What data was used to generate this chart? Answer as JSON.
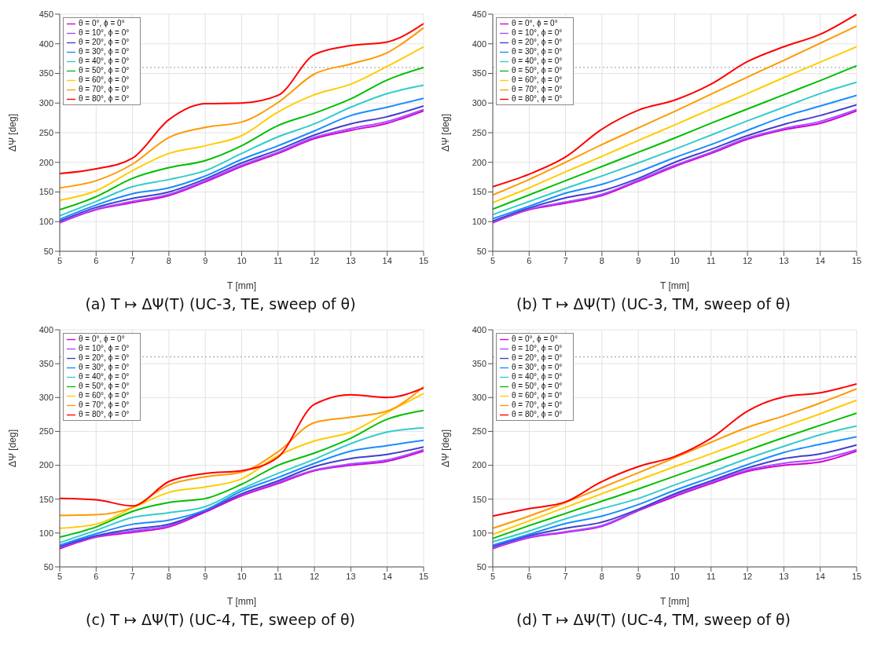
{
  "chart_data": [
    {
      "type": "line",
      "title": "(a)  T ↦ ΔΨ(T) (UC-3, TE, sweep of θ)",
      "xlabel": "T [mm]",
      "ylabel": "ΔΨ [deg]",
      "x": [
        5,
        6,
        7,
        8,
        9,
        10,
        11,
        12,
        13,
        14,
        15
      ],
      "xlim": [
        5,
        15
      ],
      "xticks": [
        5,
        6,
        7,
        8,
        9,
        10,
        11,
        12,
        13,
        14,
        15
      ],
      "ylim": [
        50,
        450
      ],
      "yticks": [
        50,
        100,
        150,
        200,
        250,
        300,
        350,
        400,
        450
      ],
      "grid": true,
      "legend": "top left",
      "ref_lines": [
        {
          "axis": "y",
          "value": 360,
          "color": "#999999",
          "line_style": "dotted"
        }
      ],
      "series": [
        {
          "name": "θ = 0°, ϕ = 0°",
          "color": "#d400d4",
          "values": [
            98,
            120,
            132,
            144,
            167,
            193,
            215,
            240,
            254,
            266,
            287
          ]
        },
        {
          "name": "θ = 10°, ϕ = 0°",
          "color": "#a64dff",
          "values": [
            99,
            121,
            134,
            146,
            169,
            195,
            217,
            242,
            257,
            269,
            289
          ]
        },
        {
          "name": "θ = 20°, ϕ = 0°",
          "color": "#4040cc",
          "values": [
            101,
            124,
            139,
            150,
            172,
            199,
            221,
            246,
            265,
            277,
            295
          ]
        },
        {
          "name": "θ = 30°, ϕ = 0°",
          "color": "#1a8cff",
          "values": [
            104,
            128,
            147,
            157,
            177,
            205,
            228,
            253,
            279,
            293,
            308
          ]
        },
        {
          "name": "θ = 40°, ϕ = 0°",
          "color": "#33cccc",
          "values": [
            110,
            134,
            159,
            171,
            186,
            215,
            243,
            265,
            293,
            316,
            330
          ]
        },
        {
          "name": "θ = 50°, ϕ = 0°",
          "color": "#00bf00",
          "values": [
            120,
            142,
            173,
            191,
            203,
            228,
            262,
            283,
            307,
            339,
            360
          ]
        },
        {
          "name": "θ = 60°, ϕ = 0°",
          "color": "#ffcc00",
          "values": [
            136,
            152,
            186,
            215,
            228,
            245,
            285,
            314,
            332,
            362,
            395
          ]
        },
        {
          "name": "θ = 70°, ϕ = 0°",
          "color": "#ff9900",
          "values": [
            157,
            169,
            197,
            242,
            259,
            268,
            301,
            349,
            366,
            385,
            427
          ]
        },
        {
          "name": "θ = 80°, ϕ = 0°",
          "color": "#ff0000",
          "values": [
            181,
            189,
            207,
            272,
            299,
            300,
            313,
            382,
            397,
            403,
            434
          ]
        }
      ]
    },
    {
      "type": "line",
      "title": "(b)  T ↦ ΔΨ(T) (UC-3, TM, sweep of θ)",
      "xlabel": "T [mm]",
      "ylabel": "ΔΨ [deg]",
      "x": [
        5,
        6,
        7,
        8,
        9,
        10,
        11,
        12,
        13,
        14,
        15
      ],
      "xlim": [
        5,
        15
      ],
      "xticks": [
        5,
        6,
        7,
        8,
        9,
        10,
        11,
        12,
        13,
        14,
        15
      ],
      "ylim": [
        50,
        450
      ],
      "yticks": [
        50,
        100,
        150,
        200,
        250,
        300,
        350,
        400,
        450
      ],
      "grid": true,
      "legend": "top left",
      "ref_lines": [
        {
          "axis": "y",
          "value": 360,
          "color": "#999999",
          "line_style": "dotted"
        }
      ],
      "series": [
        {
          "name": "θ = 0°, ϕ = 0°",
          "color": "#d400d4",
          "values": [
            98,
            120,
            131,
            144,
            168,
            193,
            215,
            239,
            255,
            266,
            287
          ]
        },
        {
          "name": "θ = 10°, ϕ = 0°",
          "color": "#a64dff",
          "values": [
            99,
            121,
            133,
            146,
            170,
            195,
            217,
            241,
            257,
            269,
            289
          ]
        },
        {
          "name": "θ = 20°, ϕ = 0°",
          "color": "#4040cc",
          "values": [
            101,
            123,
            140,
            152,
            173,
            200,
            222,
            245,
            264,
            279,
            297
          ]
        },
        {
          "name": "θ = 30°, ϕ = 0°",
          "color": "#1a8cff",
          "values": [
            105,
            126,
            148,
            163,
            184,
            208,
            230,
            254,
            277,
            295,
            313
          ]
        },
        {
          "name": "θ = 40°, ϕ = 0°",
          "color": "#33cccc",
          "values": [
            112,
            134,
            156,
            177,
            199,
            222,
            246,
            270,
            293,
            316,
            335
          ]
        },
        {
          "name": "θ = 50°, ϕ = 0°",
          "color": "#00bf00",
          "values": [
            121,
            145,
            169,
            193,
            217,
            241,
            266,
            290,
            314,
            338,
            363
          ]
        },
        {
          "name": "θ = 60°, ϕ = 0°",
          "color": "#ffcc00",
          "values": [
            132,
            157,
            184,
            210,
            237,
            263,
            290,
            316,
            343,
            369,
            395
          ]
        },
        {
          "name": "θ = 70°, ϕ = 0°",
          "color": "#ff9900",
          "values": [
            145,
            171,
            200,
            230,
            258,
            286,
            315,
            344,
            372,
            401,
            430
          ]
        },
        {
          "name": "θ = 80°, ϕ = 0°",
          "color": "#ff0000",
          "values": [
            159,
            180,
            209,
            256,
            288,
            305,
            332,
            370,
            395,
            416,
            450
          ]
        }
      ]
    },
    {
      "type": "line",
      "title": "(c)  T ↦ ΔΨ(T) (UC-4, TE, sweep of θ)",
      "xlabel": "T [mm]",
      "ylabel": "ΔΨ [deg]",
      "x": [
        5,
        6,
        7,
        8,
        9,
        10,
        11,
        12,
        13,
        14,
        15
      ],
      "xlim": [
        5,
        15
      ],
      "xticks": [
        5,
        6,
        7,
        8,
        9,
        10,
        11,
        12,
        13,
        14,
        15
      ],
      "ylim": [
        50,
        400
      ],
      "yticks": [
        50,
        100,
        150,
        200,
        250,
        300,
        350,
        400
      ],
      "grid": true,
      "legend": "top left",
      "ref_lines": [
        {
          "axis": "y",
          "value": 360,
          "color": "#999999",
          "line_style": "dotted"
        }
      ],
      "series": [
        {
          "name": "θ = 0°, ϕ = 0°",
          "color": "#d400d4",
          "values": [
            77,
            94,
            101,
            109,
            131,
            155,
            173,
            192,
            200,
            206,
            221
          ]
        },
        {
          "name": "θ = 10°, ϕ = 0°",
          "color": "#a64dff",
          "values": [
            79,
            95,
            103,
            111,
            133,
            157,
            175,
            193,
            202,
            208,
            223
          ]
        },
        {
          "name": "θ = 20°, ϕ = 0°",
          "color": "#4040cc",
          "values": [
            80,
            96,
            106,
            113,
            133,
            158,
            177,
            198,
            210,
            216,
            227
          ]
        },
        {
          "name": "θ = 30°, ϕ = 0°",
          "color": "#1a8cff",
          "values": [
            82,
            99,
            113,
            119,
            134,
            162,
            182,
            203,
            221,
            229,
            237
          ]
        },
        {
          "name": "θ = 40°, ϕ = 0°",
          "color": "#33cccc",
          "values": [
            86,
            104,
            123,
            130,
            139,
            165,
            188,
            209,
            232,
            249,
            255
          ]
        },
        {
          "name": "θ = 50°, ϕ = 0°",
          "color": "#00bf00",
          "values": [
            94,
            109,
            132,
            145,
            151,
            172,
            200,
            218,
            240,
            268,
            281
          ]
        },
        {
          "name": "θ = 60°, ϕ = 0°",
          "color": "#ffcc00",
          "values": [
            107,
            113,
            137,
            160,
            168,
            180,
            214,
            236,
            249,
            278,
            306
          ]
        },
        {
          "name": "θ = 70°, ϕ = 0°",
          "color": "#ff9900",
          "values": [
            126,
            127,
            138,
            171,
            183,
            190,
            220,
            263,
            271,
            280,
            316
          ]
        },
        {
          "name": "θ = 80°, ϕ = 0°",
          "color": "#ff0000",
          "values": [
            151,
            149,
            140,
            176,
            188,
            192,
            212,
            290,
            304,
            300,
            314
          ]
        }
      ]
    },
    {
      "type": "line",
      "title": "(d)  T ↦ ΔΨ(T) (UC-4, TM, sweep of θ)",
      "xlabel": "T [mm]",
      "ylabel": "ΔΨ [deg]",
      "x": [
        5,
        6,
        7,
        8,
        9,
        10,
        11,
        12,
        13,
        14,
        15
      ],
      "xlim": [
        5,
        15
      ],
      "xticks": [
        5,
        6,
        7,
        8,
        9,
        10,
        11,
        12,
        13,
        14,
        15
      ],
      "ylim": [
        50,
        400
      ],
      "yticks": [
        50,
        100,
        150,
        200,
        250,
        300,
        350,
        400
      ],
      "grid": true,
      "legend": "top left",
      "ref_lines": [
        {
          "axis": "y",
          "value": 360,
          "color": "#999999",
          "line_style": "dotted"
        }
      ],
      "series": [
        {
          "name": "θ = 0°, ϕ = 0°",
          "color": "#d400d4",
          "values": [
            77,
            93,
            101,
            110,
            133,
            154,
            173,
            191,
            200,
            205,
            221
          ]
        },
        {
          "name": "θ = 10°, ϕ = 0°",
          "color": "#a64dff",
          "values": [
            78,
            94,
            102,
            111,
            134,
            156,
            175,
            193,
            203,
            209,
            223
          ]
        },
        {
          "name": "θ = 20°, ϕ = 0°",
          "color": "#4040cc",
          "values": [
            80,
            96,
            107,
            116,
            135,
            158,
            177,
            196,
            210,
            217,
            230
          ]
        },
        {
          "name": "θ = 30°, ϕ = 0°",
          "color": "#1a8cff",
          "values": [
            82,
            98,
            114,
            125,
            142,
            163,
            182,
            201,
            219,
            231,
            242
          ]
        },
        {
          "name": "θ = 40°, ϕ = 0°",
          "color": "#33cccc",
          "values": [
            87,
            103,
            121,
            136,
            151,
            171,
            190,
            210,
            228,
            245,
            258
          ]
        },
        {
          "name": "θ = 50°, ϕ = 0°",
          "color": "#00bf00",
          "values": [
            92,
            111,
            129,
            147,
            165,
            184,
            203,
            222,
            241,
            259,
            277
          ]
        },
        {
          "name": "θ = 60°, ϕ = 0°",
          "color": "#ffcc00",
          "values": [
            98,
            118,
            138,
            158,
            178,
            198,
            217,
            237,
            257,
            276,
            296
          ]
        },
        {
          "name": "θ = 70°, ϕ = 0°",
          "color": "#ff9900",
          "values": [
            107,
            125,
            145,
            167,
            189,
            211,
            234,
            256,
            273,
            292,
            313
          ]
        },
        {
          "name": "θ = 80°, ϕ = 0°",
          "color": "#ff0000",
          "values": [
            125,
            136,
            146,
            176,
            198,
            213,
            240,
            280,
            301,
            307,
            320
          ]
        }
      ]
    }
  ]
}
